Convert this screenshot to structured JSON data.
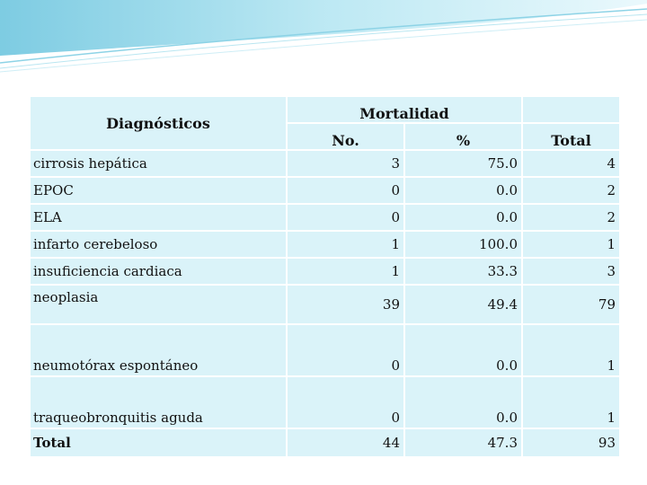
{
  "table": {
    "header": {
      "diagnosticos": "Diagnósticos",
      "mortalidad": "Mortalidad",
      "no": "No.",
      "pct": "%",
      "total": "Total"
    },
    "rows": [
      {
        "label": "cirrosis hepática",
        "no": "3",
        "pct": "75.0",
        "total": "4"
      },
      {
        "label": "EPOC",
        "no": "0",
        "pct": "0.0",
        "total": "2"
      },
      {
        "label": "ELA",
        "no": "0",
        "pct": "0.0",
        "total": "2"
      },
      {
        "label": "infarto cerebeloso",
        "no": "1",
        "pct": "100.0",
        "total": "1"
      },
      {
        "label": "insuficiencia cardiaca",
        "no": "1",
        "pct": "33.3",
        "total": "3"
      },
      {
        "label": "neoplasia",
        "no": "39",
        "pct": "49.4",
        "total": "79"
      },
      {
        "label": "neumotórax espontáneo",
        "no": "0",
        "pct": "0.0",
        "total": "1"
      },
      {
        "label": "traqueobronquitis aguda",
        "no": "0",
        "pct": "0.0",
        "total": "1"
      },
      {
        "label": "Total",
        "no": "44",
        "pct": "47.3",
        "total": "93"
      }
    ]
  },
  "colors": {
    "cell_background": "#daf3f9",
    "swoosh": "#9fdcec"
  }
}
